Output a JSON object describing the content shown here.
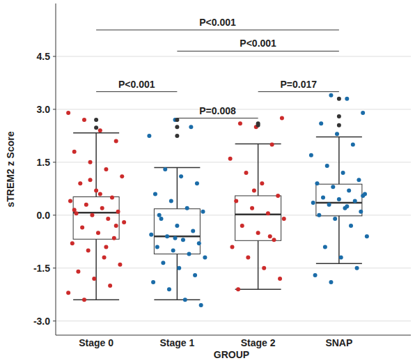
{
  "chart_data": {
    "type": "box",
    "x_label": "GROUP",
    "y_label": "sTREM2 z Score",
    "categories": [
      "Stage 0",
      "Stage 1",
      "Stage 2",
      "SNAP"
    ],
    "colors": [
      "#cc2b2b",
      "#1b6ca8",
      "#cc2b2b",
      "#1b6ca8"
    ],
    "ylim": [
      -3.4,
      6.0
    ],
    "yticks": [
      {
        "value": -3,
        "label": "-3.0"
      },
      -1.5,
      {
        "value": 0,
        "label": "0.0"
      },
      1.5,
      {
        "value": 3,
        "label": "3.0"
      },
      4.5
    ],
    "grid": true,
    "boxes": [
      {
        "whisker_low": -2.4,
        "q1": -0.68,
        "median": 0.07,
        "q3": 0.52,
        "whisker_high": 2.33,
        "outliers": [
          2.7,
          2.48
        ],
        "points": [
          2.9,
          2.7,
          2.4,
          2.1,
          1.8,
          1.5,
          1.3,
          1.1,
          0.9,
          0.7,
          0.5,
          0.4,
          0.3,
          0.2,
          0.1,
          0.05,
          0,
          -0.1,
          -0.2,
          -0.35,
          -0.5,
          -0.65,
          -0.8,
          -1.0,
          -1.2,
          -1.4,
          -1.6,
          -1.8,
          -2.0,
          -2.2,
          -2.4,
          0.6,
          -0.3,
          0.15,
          1.0,
          -0.9
        ]
      },
      {
        "whisker_low": -2.4,
        "q1": -1.1,
        "median": -0.6,
        "q3": 0.18,
        "whisker_high": 1.35,
        "outliers": [
          2.7,
          2.5,
          2.25
        ],
        "points": [
          2.7,
          2.5,
          2.25,
          1.3,
          1.1,
          0.9,
          0.6,
          0.4,
          0.2,
          0.1,
          -0.1,
          -0.3,
          -0.45,
          -0.55,
          -0.6,
          -0.7,
          -0.8,
          -0.9,
          -1.0,
          -1.1,
          -1.2,
          -1.35,
          -1.5,
          -1.7,
          -1.9,
          -2.1,
          -2.4,
          -2.55,
          0.0,
          -0.65
        ]
      },
      {
        "whisker_low": -2.1,
        "q1": -0.72,
        "median": 0.02,
        "q3": 0.55,
        "whisker_high": 2.02,
        "outliers": [
          2.6,
          2.55
        ],
        "points": [
          2.75,
          2.6,
          2.5,
          2.0,
          1.6,
          1.2,
          0.9,
          0.55,
          0.4,
          0.2,
          0.05,
          -0.1,
          -0.3,
          -0.5,
          -0.7,
          -0.9,
          -1.2,
          -1.5,
          -1.8,
          -2.1,
          0.7,
          -0.6
        ]
      },
      {
        "whisker_low": -1.37,
        "q1": -0.02,
        "median": 0.35,
        "q3": 0.88,
        "whisker_high": 2.22,
        "outliers": [
          3.3,
          2.8,
          2.55
        ],
        "points": [
          3.4,
          3.3,
          2.9,
          2.6,
          2.3,
          2.0,
          1.7,
          1.4,
          1.2,
          1.0,
          0.9,
          0.8,
          0.7,
          0.6,
          0.5,
          0.45,
          0.4,
          0.35,
          0.3,
          0.2,
          0.1,
          0.0,
          -0.1,
          -0.3,
          -0.6,
          -0.9,
          -1.2,
          -1.5,
          -1.7,
          -1.9,
          0.25,
          0.55
        ]
      }
    ],
    "comparisons": [
      {
        "from": 0,
        "to": 3,
        "y": 5.25,
        "text": "P<0.001"
      },
      {
        "from": 1,
        "to": 3,
        "y": 4.65,
        "text": "P<0.001"
      },
      {
        "from": 0,
        "to": 1,
        "y": 3.5,
        "text": "P<0.001"
      },
      {
        "from": 2,
        "to": 3,
        "y": 3.5,
        "text": "P=0.017"
      },
      {
        "from": 1,
        "to": 2,
        "y": 2.75,
        "text": "P=0.008"
      }
    ]
  }
}
